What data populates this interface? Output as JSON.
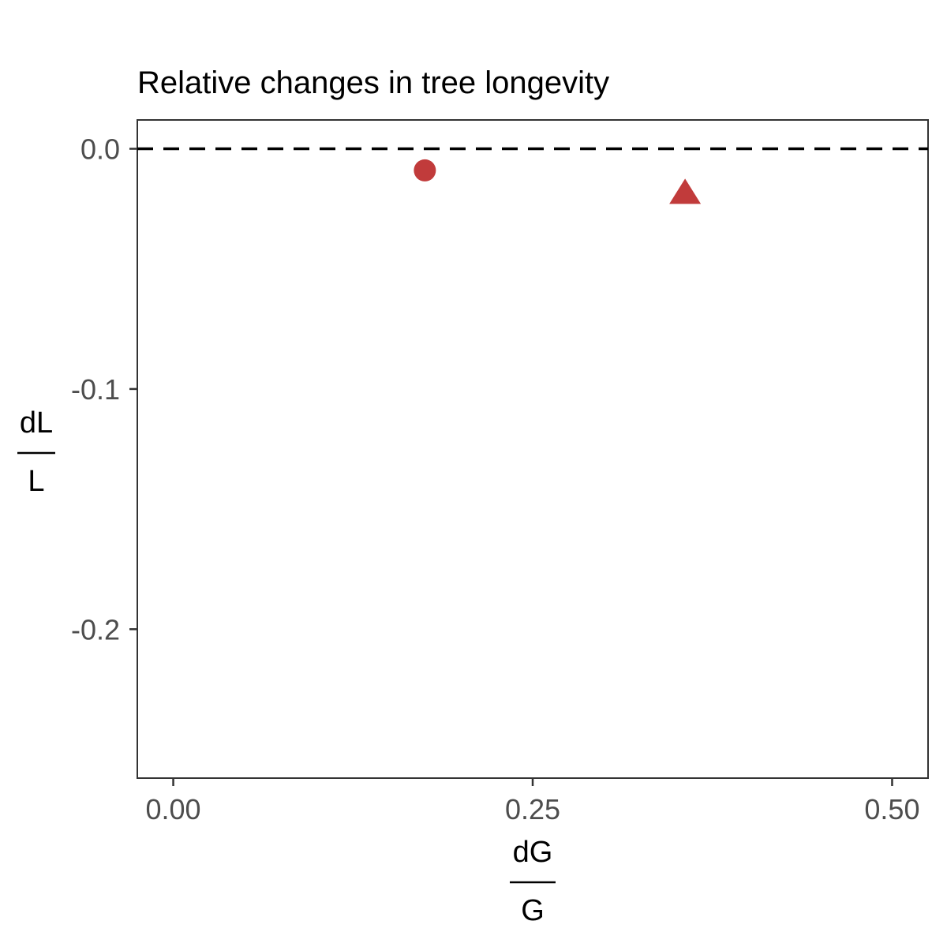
{
  "chart_data": {
    "type": "scatter",
    "title": "Relative changes in tree longevity",
    "xlabel": {
      "numerator": "dG",
      "denominator": "G"
    },
    "ylabel": {
      "numerator": "dL",
      "denominator": "L"
    },
    "xlim": [
      -0.025,
      0.525
    ],
    "ylim": [
      -0.262,
      0.012
    ],
    "x_ticks": [
      0.0,
      0.25,
      0.5
    ],
    "x_tick_labels": [
      "0.00",
      "0.25",
      "0.50"
    ],
    "y_ticks": [
      0.0,
      -0.1,
      -0.2
    ],
    "y_tick_labels": [
      "0.0",
      "-0.1",
      "-0.2"
    ],
    "reference_line": {
      "y": 0.0,
      "style": "dashed",
      "color": "#000000"
    },
    "grid": false,
    "points": [
      {
        "x": 0.175,
        "y": -0.009,
        "shape": "circle",
        "color": "#c13b3b"
      },
      {
        "x": 0.356,
        "y": -0.019,
        "shape": "triangle",
        "color": "#c13b3b"
      }
    ]
  }
}
